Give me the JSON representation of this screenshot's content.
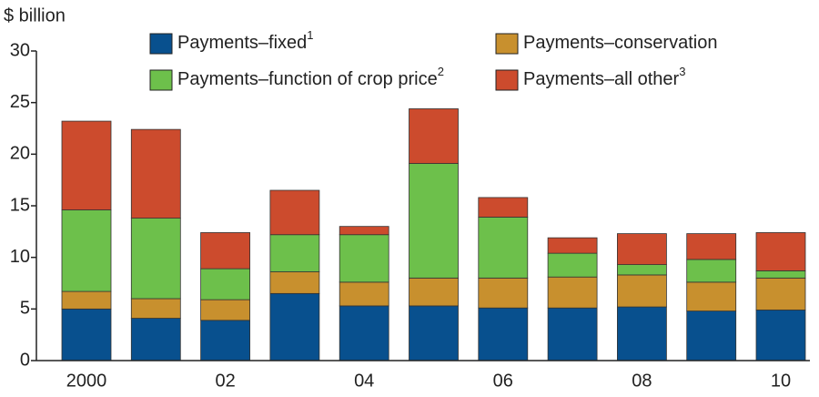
{
  "chart_data": {
    "type": "stacked_bar",
    "y_label": "$ billion",
    "categories": [
      "2000",
      null,
      "02",
      null,
      "04",
      null,
      "06",
      null,
      "08",
      null,
      "10"
    ],
    "series": [
      {
        "name": "Payments–fixed",
        "footnote": "1",
        "color": "#08508e",
        "values": [
          5.0,
          4.1,
          3.9,
          6.5,
          5.3,
          5.3,
          5.1,
          5.1,
          5.2,
          4.8,
          4.9
        ]
      },
      {
        "name": "Payments–conservation",
        "color": "#c8902e",
        "values": [
          1.7,
          1.9,
          2.0,
          2.1,
          2.3,
          2.7,
          2.9,
          3.0,
          3.1,
          2.8,
          3.1
        ]
      },
      {
        "name": "Payments–function of crop price",
        "footnote": "2",
        "color": "#6dc04b",
        "values": [
          7.9,
          7.8,
          3.0,
          3.6,
          4.6,
          11.1,
          5.9,
          2.3,
          1.0,
          2.2,
          0.7
        ]
      },
      {
        "name": "Payments–all other",
        "footnote": "3",
        "color": "#cc4b2d",
        "values": [
          8.6,
          8.6,
          3.5,
          4.3,
          0.8,
          5.3,
          1.9,
          1.5,
          3.0,
          2.5,
          3.7
        ]
      }
    ],
    "ylim": [
      0,
      30
    ],
    "yticks": [
      0,
      5,
      10,
      15,
      20,
      25,
      30
    ]
  }
}
